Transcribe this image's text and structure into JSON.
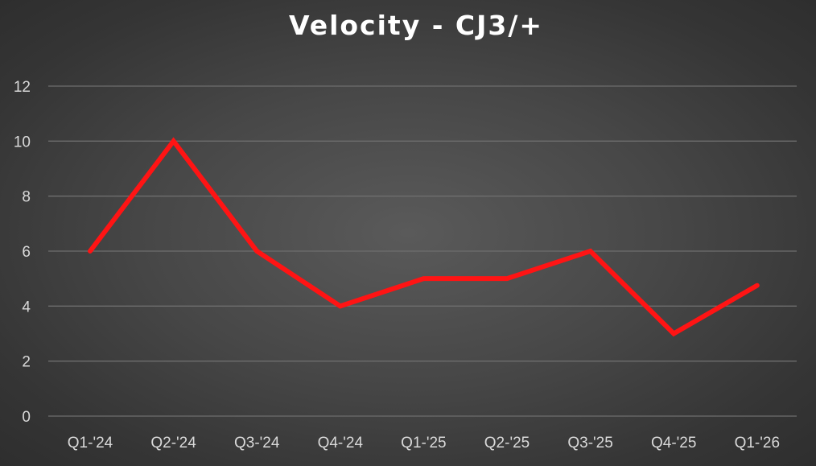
{
  "chart_data": {
    "type": "line",
    "title": "Velocity - CJ3/+",
    "xlabel": "",
    "ylabel": "",
    "categories": [
      "Q1-'24",
      "Q2-'24",
      "Q3-'24",
      "Q4-'24",
      "Q1-'25",
      "Q2-'25",
      "Q3-'25",
      "Q4-'25",
      "Q1-'26"
    ],
    "series": [
      {
        "values": [
          6,
          10,
          6,
          4,
          5,
          5,
          6,
          3,
          4.75
        ]
      }
    ],
    "ylim": [
      0,
      12
    ],
    "yticks": [
      0,
      2,
      4,
      6,
      8,
      10,
      12
    ],
    "grid": true,
    "legend": "none",
    "colors": {
      "line": "#ff1414",
      "grid": "#6e6e6e",
      "text": "#d9d9d9",
      "title": "#ffffff"
    }
  }
}
